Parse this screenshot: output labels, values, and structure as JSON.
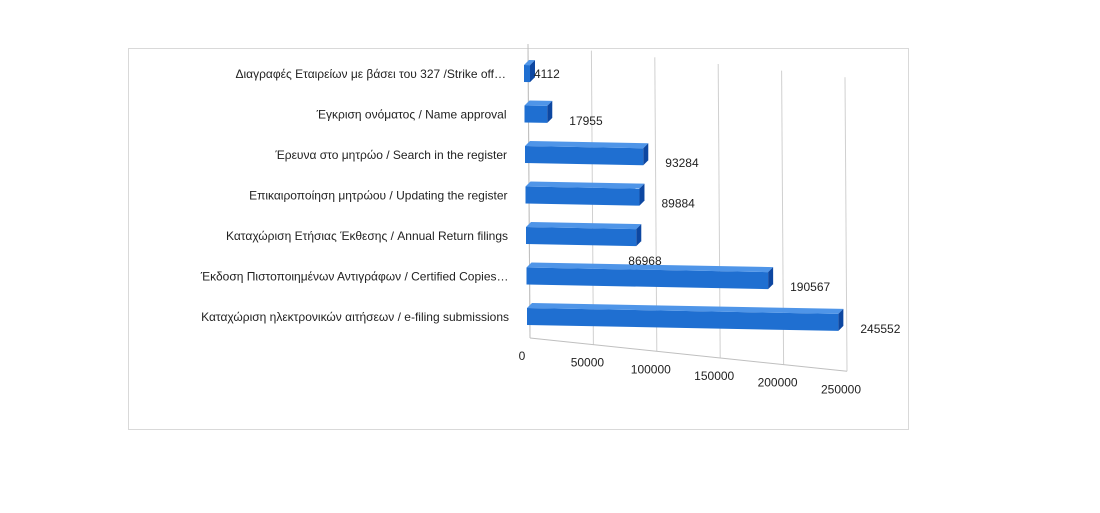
{
  "chart_data": {
    "type": "bar",
    "orientation": "horizontal",
    "style": "3d",
    "title": "",
    "xlabel": "",
    "ylabel": "",
    "categories": [
      "Διαγραφές Εταιρείων  με  βάσει του 327 /Strike off…",
      "Έγκριση ονόματος / Name approval",
      "Έρευνα στο μητρώο / Search in the register",
      "Επικαιροποίηση μητρώου / Updating the register",
      "Καταχώριση Ετήσιας Έκθεσης / Annual Return filings",
      "Έκδοση Πιστοποιημένων Αντιγράφων  / Certified Copies…",
      "Καταχώριση ηλεκτρονικών αιτήσεων / e-filing submissions"
    ],
    "values": [
      4112,
      17955,
      93284,
      89884,
      86968,
      190567,
      245552
    ],
    "value_labels": [
      "4112",
      "17955",
      "93284",
      "89884",
      "86968",
      "190567",
      "245552"
    ],
    "xlim": [
      0,
      250000
    ],
    "ticks": [
      "0",
      "50000",
      "100000",
      "150000",
      "200000",
      "250000"
    ],
    "grid": true,
    "legend": "none",
    "colors": {
      "bar_front": "#1f6fd1",
      "bar_top": "#4f95e8",
      "bar_side": "#0d47a1",
      "grid": "#d0d0d0"
    }
  }
}
